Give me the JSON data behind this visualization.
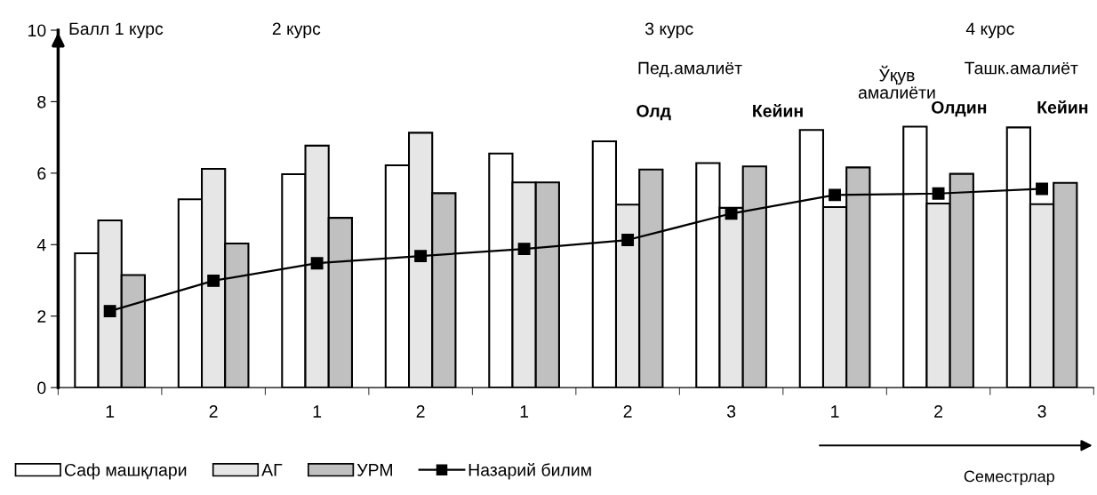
{
  "chart_data": {
    "type": "bar",
    "ylabel": "Балл",
    "xlabel": "Семестрлар",
    "categories": [
      "1",
      "2",
      "1",
      "2",
      "1",
      "2",
      "3",
      "1",
      "2",
      "3"
    ],
    "series": [
      {
        "name": "Саф машқлари",
        "color": "#ffffff",
        "values": [
          3.76,
          5.27,
          5.97,
          6.22,
          6.55,
          6.89,
          6.28,
          7.21,
          7.3,
          7.28
        ]
      },
      {
        "name": "АГ",
        "color": "#e6e6e6",
        "values": [
          4.68,
          6.12,
          6.77,
          7.13,
          5.74,
          5.12,
          5.03,
          5.05,
          5.15,
          5.13
        ]
      },
      {
        "name": "УРМ",
        "color": "#c0c0c0",
        "values": [
          3.15,
          4.03,
          4.75,
          5.44,
          5.74,
          6.1,
          6.19,
          6.16,
          5.98,
          5.73
        ]
      },
      {
        "name": "Назарий билим",
        "type": "line",
        "color": "#000000",
        "marker": "square",
        "values": [
          2.14,
          2.99,
          3.48,
          3.68,
          3.88,
          4.13,
          4.87,
          5.39,
          5.43,
          5.56
        ]
      }
    ],
    "ylim": [
      0,
      10
    ],
    "yticks": [
      0,
      2,
      4,
      6,
      8,
      10
    ],
    "grid": false,
    "legend": "bottom",
    "annotations": [
      "1 курс",
      "2 курс",
      "3 курс",
      "4 курс",
      "Пед.амалиёт",
      "Олд",
      "Кейин",
      "Ўқув\nамалиёти",
      "Ташк.амалиёт",
      "Олдин",
      "Кейин"
    ]
  }
}
